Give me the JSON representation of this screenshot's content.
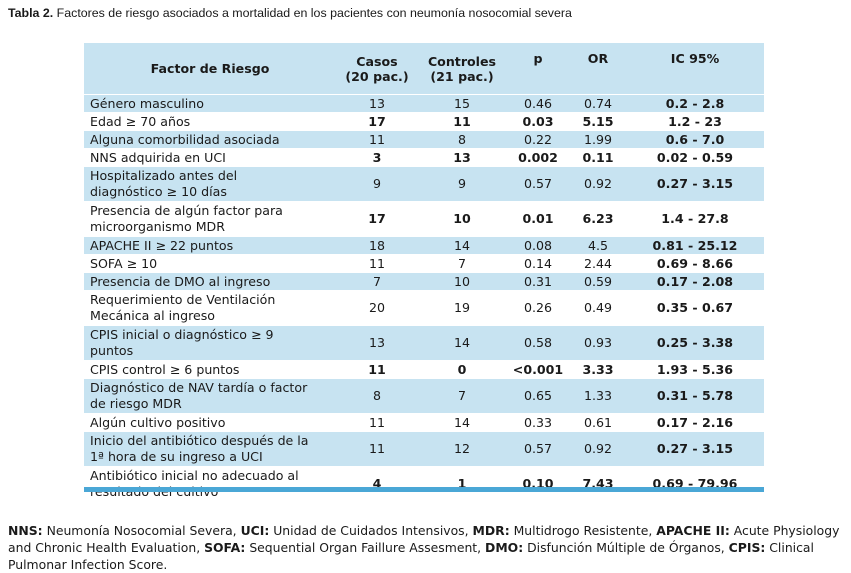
{
  "caption": {
    "label": "Tabla 2.",
    "text": " Factores de riesgo asociados a mortalidad en los pacientes con neumonía nosocomial severa"
  },
  "table": {
    "headers": {
      "factor": "Factor de Riesgo",
      "casos_1": "Casos",
      "casos_2": "(20 pac.)",
      "controles_1": "Controles",
      "controles_2": "(21 pac.)",
      "p": "p",
      "or": "OR",
      "ic": "IC 95%"
    },
    "rows": [
      {
        "factor": [
          "Género masculino"
        ],
        "casos": "13",
        "controles": "15",
        "p": "0.46",
        "or": "0.74",
        "ic": "0.2 - 2.8",
        "bold": false
      },
      {
        "factor": [
          "Edad ≥ 70 años"
        ],
        "casos": "17",
        "controles": "11",
        "p": "0.03",
        "or": "5.15",
        "ic": "1.2 - 23",
        "bold": true
      },
      {
        "factor": [
          "Alguna comorbilidad asociada"
        ],
        "casos": "11",
        "controles": "8",
        "p": "0.22",
        "or": "1.99",
        "ic": "0.6 - 7.0",
        "bold": false
      },
      {
        "factor": [
          "NNS adquirida en UCI"
        ],
        "casos": "3",
        "controles": "13",
        "p": "0.002",
        "or": "0.11",
        "ic": "0.02 - 0.59",
        "bold": true
      },
      {
        "factor": [
          "Hospitalizado antes del",
          "diagnóstico ≥ 10 días"
        ],
        "casos": "9",
        "controles": "9",
        "p": "0.57",
        "or": "0.92",
        "ic": "0.27 - 3.15",
        "bold": false
      },
      {
        "factor": [
          "Presencia de algún factor para",
          "microorganismo MDR"
        ],
        "casos": "17",
        "controles": "10",
        "p": "0.01",
        "or": "6.23",
        "ic": "1.4 - 27.8",
        "bold": true
      },
      {
        "factor": [
          "APACHE II ≥ 22 puntos"
        ],
        "casos": "18",
        "controles": "14",
        "p": "0.08",
        "or": "4.5",
        "ic": "0.81 - 25.12",
        "bold": false
      },
      {
        "factor": [
          "SOFA ≥ 10"
        ],
        "casos": "11",
        "controles": "7",
        "p": "0.14",
        "or": "2.44",
        "ic": "0.69 - 8.66",
        "bold": false
      },
      {
        "factor": [
          "Presencia de DMO al ingreso"
        ],
        "casos": "7",
        "controles": "10",
        "p": "0.31",
        "or": "0.59",
        "ic": "0.17 - 2.08",
        "bold": false
      },
      {
        "factor": [
          "Requerimiento de Ventilación",
          "Mecánica al ingreso"
        ],
        "casos": "20",
        "controles": "19",
        "p": "0.26",
        "or": "0.49",
        "ic": "0.35 - 0.67",
        "bold": false
      },
      {
        "factor": [
          "CPIS inicial o diagnóstico ≥ 9",
          "puntos"
        ],
        "casos": "13",
        "controles": "14",
        "p": "0.58",
        "or": "0.93",
        "ic": "0.25 - 3.38",
        "bold": false
      },
      {
        "factor": [
          "CPIS control ≥ 6 puntos"
        ],
        "casos": "11",
        "controles": "0",
        "p": "<0.001",
        "or": "3.33",
        "ic": "1.93 - 5.36",
        "bold": true
      },
      {
        "factor": [
          "Diagnóstico de NAV tardía o factor",
          "de riesgo MDR"
        ],
        "casos": "8",
        "controles": "7",
        "p": "0.65",
        "or": "1.33",
        "ic": "0.31 - 5.78",
        "bold": false
      },
      {
        "factor": [
          "Algún cultivo positivo"
        ],
        "casos": "11",
        "controles": "14",
        "p": "0.33",
        "or": "0.61",
        "ic": "0.17 - 2.16",
        "bold": false
      },
      {
        "factor": [
          "Inicio del antibiótico después de la",
          "1ª hora de su ingreso a UCI"
        ],
        "casos": "11",
        "controles": "12",
        "p": "0.57",
        "or": "0.92",
        "ic": "0.27 - 3.15",
        "bold": false
      },
      {
        "factor": [
          "Antibiótico inicial no adecuado al",
          "resultado del cultivo"
        ],
        "casos": "4",
        "controles": "1",
        "p": "0.10",
        "or": "7.43",
        "ic": "0.69 - 79.96",
        "bold": true
      }
    ]
  },
  "footnote": [
    {
      "abbr": "NNS:",
      "text": " Neumonía Nosocomial Severa, "
    },
    {
      "abbr": "UCI:",
      "text": " Unidad de Cuidados Intensivos, "
    },
    {
      "abbr": "MDR:",
      "text": " Multidrogo Resistente, "
    },
    {
      "abbr": "APACHE II:",
      "text": " Acute Physiology and Chronic Health Evaluation, "
    },
    {
      "abbr": "SOFA:",
      "text": " Sequential Organ Faillure Assesment, "
    },
    {
      "abbr": "DMO:",
      "text": " Disfunción Múltiple de Órganos, "
    },
    {
      "abbr": "CPIS:",
      "text": " Clinical Pulmonar Infection Score."
    }
  ],
  "colors": {
    "stripe": "#c7e3f1",
    "bar": "#4aa7d6"
  }
}
